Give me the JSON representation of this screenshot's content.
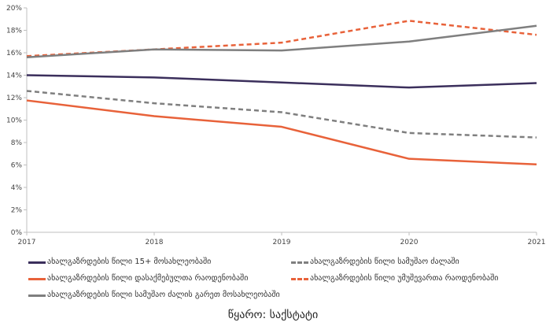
{
  "chart_data": {
    "type": "line",
    "title": "",
    "xlabel": "",
    "ylabel": "",
    "x": [
      "2017",
      "2018",
      "2019",
      "2020",
      "2021"
    ],
    "ylim": [
      0,
      20
    ],
    "yticks": [
      "0%",
      "2%",
      "4%",
      "6%",
      "8%",
      "10%",
      "12%",
      "14%",
      "16%",
      "18%",
      "20%"
    ],
    "grid": false,
    "legend_position": "bottom",
    "series": [
      {
        "name": "ახალგაზრდების წილი 15+ მოსახლეობაში",
        "values": [
          14.0,
          13.8,
          13.35,
          12.9,
          13.3
        ],
        "color": "#3b2f5c",
        "dashed": false
      },
      {
        "name": "ახალგაზრდების წილი სამუშაო ძალაში",
        "values": [
          12.6,
          11.5,
          10.7,
          8.85,
          8.45
        ],
        "color": "#7f7f7f",
        "dashed": true
      },
      {
        "name": "ახალგაზრდების წილი დასაქმებულთა რაოდენობაში",
        "values": [
          11.75,
          10.35,
          9.4,
          6.55,
          6.05
        ],
        "color": "#e8623a",
        "dashed": false
      },
      {
        "name": "ახალგაზრდების წილი უმუშევართა რაოდენობაში",
        "values": [
          15.7,
          16.3,
          16.9,
          18.85,
          17.6
        ],
        "color": "#e8623a",
        "dashed": true
      },
      {
        "name": "ახალგაზრდების წილი სამუშაო ძალის გარეთ მოსახლეობაში",
        "values": [
          15.6,
          16.3,
          16.2,
          17.0,
          18.4
        ],
        "color": "#7f7f7f",
        "dashed": false
      }
    ]
  },
  "source_note": "წყარო: საქსტატი"
}
